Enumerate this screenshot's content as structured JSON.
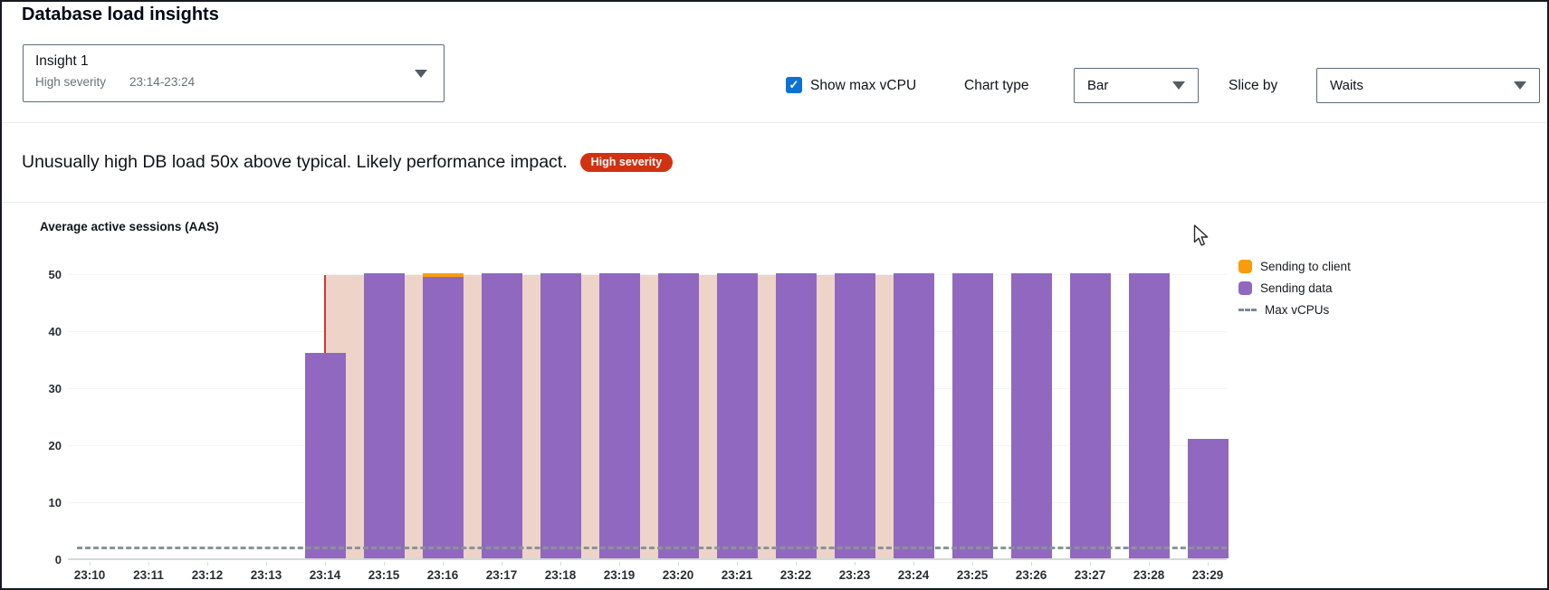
{
  "page": {
    "title": "Database load insights"
  },
  "insight_selector": {
    "title": "Insight 1",
    "severity": "High severity",
    "time_range": "23:14-23:24"
  },
  "controls": {
    "show_max_vcpu_label": "Show max vCPU",
    "show_max_vcpu_checked": true,
    "checkbox_color": "#0972d3",
    "chart_type_label": "Chart type",
    "chart_type_value": "Bar",
    "slice_by_label": "Slice by",
    "slice_by_value": "Waits"
  },
  "alert": {
    "message": "Unusually high DB load 50x above typical. Likely performance impact.",
    "severity_badge": "High severity",
    "badge_color": "#d13212"
  },
  "chart_data": {
    "type": "bar",
    "title": "Average active sessions (AAS)",
    "categories": [
      "23:10",
      "23:11",
      "23:12",
      "23:13",
      "23:14",
      "23:15",
      "23:16",
      "23:17",
      "23:18",
      "23:19",
      "23:20",
      "23:21",
      "23:22",
      "23:23",
      "23:24",
      "23:25",
      "23:26",
      "23:27",
      "23:28",
      "23:29"
    ],
    "series": [
      {
        "name": "Sending to client",
        "color": "#f89c0e",
        "values": [
          0,
          0,
          0,
          0,
          0,
          0,
          0.7,
          0,
          0,
          0,
          0,
          0,
          0,
          0,
          0,
          0,
          0,
          0,
          0,
          0
        ]
      },
      {
        "name": "Sending data",
        "color": "#9168c0",
        "values": [
          0,
          0,
          0,
          0,
          36,
          50,
          49.3,
          50,
          50,
          50,
          50,
          50,
          50,
          50,
          50,
          50,
          50,
          50,
          50,
          21
        ]
      }
    ],
    "max_vcpus": {
      "label": "Max vCPUs",
      "value": 2,
      "color": "#879596"
    },
    "ylim": [
      0,
      50
    ],
    "yticks": [
      0,
      10,
      20,
      30,
      40,
      50
    ],
    "grid": true,
    "legend_position": "right",
    "highlight_region": {
      "start": "23:14",
      "end": "23:24",
      "fill_color": "#eed3c9",
      "line_color": "#cc3b33"
    }
  }
}
